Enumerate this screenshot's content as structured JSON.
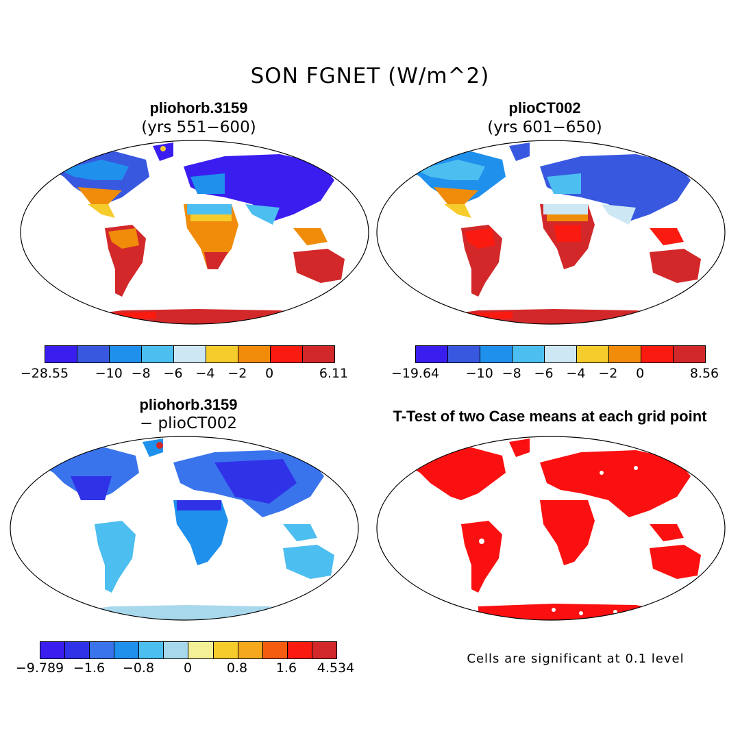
{
  "title": "SON FGNET (W/m^2)",
  "panels": [
    {
      "title": "pliohorb.3159",
      "subtitle": "(yrs 551−600)"
    },
    {
      "title": "plioCT002",
      "subtitle": "(yrs 601−650)"
    },
    {
      "title": "pliohorb.3159",
      "subtitle": "− plioCT002"
    },
    {
      "title": "T-Test of two Case means at each grid point",
      "subtitle": ""
    }
  ],
  "colorbars": {
    "a": {
      "colors": [
        "#3a1ef0",
        "#3858e0",
        "#1f90ec",
        "#4dbef0",
        "#cde8f4",
        "#f6cc2c",
        "#f08c0a",
        "#fa1a10",
        "#d2282a"
      ],
      "ticks": [
        "−28.55",
        "−10",
        "−8",
        "−6",
        "−4",
        "−2",
        "0",
        "6.11"
      ]
    },
    "b": {
      "colors": [
        "#3a1ef0",
        "#3858e0",
        "#1f90ec",
        "#4dbef0",
        "#cde8f4",
        "#f6cc2c",
        "#f08c0a",
        "#fa1a10",
        "#d2282a"
      ],
      "ticks": [
        "−19.64",
        "−10",
        "−8",
        "−6",
        "−4",
        "−2",
        "0",
        "8.56"
      ]
    },
    "c": {
      "colors": [
        "#3a1ef0",
        "#3032e8",
        "#3a74ec",
        "#1f90ec",
        "#4dbef0",
        "#a8d8ec",
        "#f4f098",
        "#f6cc2c",
        "#f6a81c",
        "#f45c10",
        "#fa1a10",
        "#d2282a"
      ],
      "ticks": [
        "−9.789",
        "−1.6",
        "−0.8",
        "0",
        "0.8",
        "1.6",
        "4.534"
      ]
    }
  },
  "note": "Cells are significant at 0.1 level",
  "colors": {
    "ocean": "#ffffff",
    "significant": "#fa1010"
  }
}
